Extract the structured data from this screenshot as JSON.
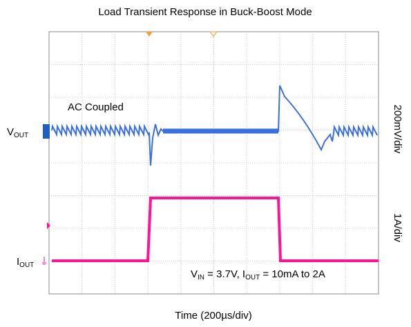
{
  "chart_data": {
    "type": "scope",
    "title": "Load Transient Response in Buck-Boost Mode",
    "xlabel": "Time (200µs/div)",
    "channel_labels": [
      {
        "main": "V",
        "sub": "OUT",
        "scale": "200mV/div",
        "color": "#3a6fe0"
      },
      {
        "main": "I",
        "sub": "OUT",
        "scale": "1A/div",
        "color": "#ff1493"
      }
    ],
    "annotations": [
      "AC Coupled"
    ],
    "conditions": [
      "V",
      "IN",
      " = 3.7V, I",
      "OUT",
      " = 10mA to 2A"
    ],
    "grid": true
  }
}
